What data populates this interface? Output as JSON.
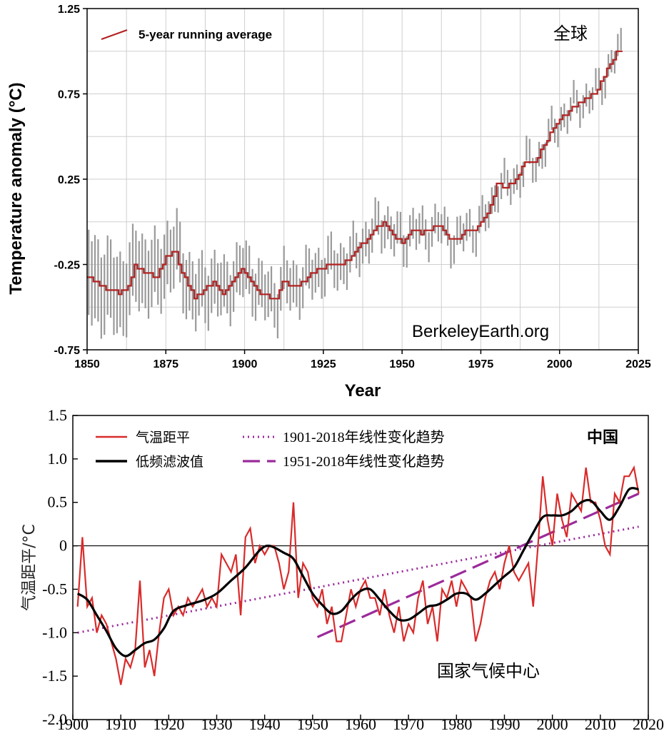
{
  "chart_data": [
    {
      "type": "line",
      "title": "全球",
      "xlabel": "Year",
      "ylabel": "Temperature anomaly (°C)",
      "xlim": [
        1850,
        2025
      ],
      "ylim": [
        -0.75,
        1.25
      ],
      "x_ticks": [
        "1850",
        "1875",
        "1900",
        "1925",
        "1950",
        "1975",
        "2000",
        "2025"
      ],
      "y_ticks": [
        "1.25",
        "0.75",
        "0.25",
        "-0.25",
        "-0.75"
      ],
      "legend": "5-year running average",
      "watermark": "BerkeleyEarth.org",
      "series_color": "#b22222",
      "uncertainty_color": "#9a9a9a",
      "series": [
        {
          "name": "5-year running average",
          "x": [
            1850,
            1855,
            1860,
            1863,
            1865,
            1868,
            1872,
            1875,
            1878,
            1880,
            1884,
            1887,
            1890,
            1893,
            1896,
            1899,
            1902,
            1905,
            1908,
            1910,
            1912,
            1915,
            1918,
            1921,
            1924,
            1927,
            1930,
            1933,
            1936,
            1939,
            1942,
            1944,
            1947,
            1950,
            1953,
            1956,
            1959,
            1962,
            1965,
            1967,
            1970,
            1973,
            1975,
            1978,
            1980,
            1983,
            1986,
            1989,
            1992,
            1995,
            1998,
            2000,
            2003,
            2006,
            2009,
            2012,
            2014,
            2016,
            2018,
            2020
          ],
          "values": [
            -0.32,
            -0.38,
            -0.42,
            -0.38,
            -0.25,
            -0.3,
            -0.32,
            -0.2,
            -0.18,
            -0.3,
            -0.44,
            -0.4,
            -0.36,
            -0.42,
            -0.34,
            -0.28,
            -0.34,
            -0.42,
            -0.44,
            -0.46,
            -0.35,
            -0.38,
            -0.36,
            -0.3,
            -0.28,
            -0.25,
            -0.25,
            -0.22,
            -0.15,
            -0.1,
            -0.02,
            -0.01,
            -0.08,
            -0.12,
            -0.04,
            -0.07,
            -0.04,
            -0.03,
            -0.1,
            -0.11,
            -0.05,
            -0.04,
            0.0,
            0.09,
            0.22,
            0.2,
            0.25,
            0.35,
            0.34,
            0.45,
            0.55,
            0.6,
            0.65,
            0.7,
            0.72,
            0.78,
            0.86,
            0.92,
            1.0,
            1.0
          ]
        }
      ]
    },
    {
      "type": "line",
      "title": "中国",
      "xlabel": "",
      "ylabel": "气温距平/°C",
      "xlim": [
        1900,
        2020
      ],
      "ylim": [
        -2.0,
        1.5
      ],
      "x_ticks": [
        "1900",
        "1910",
        "1920",
        "1930",
        "1940",
        "1950",
        "1960",
        "1970",
        "1980",
        "1990",
        "2000",
        "2010",
        "2020"
      ],
      "y_ticks": [
        "1.5",
        "1.0",
        "0.5",
        "0",
        "-0.5",
        "-1.0",
        "-1.5",
        "-2.0"
      ],
      "watermark": "国家气候中心",
      "legend_labels": {
        "raw": "气温距平",
        "smooth": "低频滤波值",
        "trend_1901": "1901-2018年线性变化趋势",
        "trend_1951": "1951-2018年线性变化趋势"
      },
      "colors": {
        "raw": "#d92b2b",
        "smooth": "#000000",
        "trend": "#9b2a9b"
      },
      "series": [
        {
          "name": "气温距平",
          "x": [
            1901,
            1902,
            1903,
            1904,
            1905,
            1906,
            1907,
            1908,
            1909,
            1910,
            1911,
            1912,
            1913,
            1914,
            1915,
            1916,
            1917,
            1918,
            1919,
            1920,
            1921,
            1922,
            1923,
            1924,
            1925,
            1926,
            1927,
            1928,
            1929,
            1930,
            1931,
            1932,
            1933,
            1934,
            1935,
            1936,
            1937,
            1938,
            1939,
            1940,
            1941,
            1942,
            1943,
            1944,
            1945,
            1946,
            1947,
            1948,
            1949,
            1950,
            1951,
            1952,
            1953,
            1954,
            1955,
            1956,
            1957,
            1958,
            1959,
            1960,
            1961,
            1962,
            1963,
            1964,
            1965,
            1966,
            1967,
            1968,
            1969,
            1970,
            1971,
            1972,
            1973,
            1974,
            1975,
            1976,
            1977,
            1978,
            1979,
            1980,
            1981,
            1982,
            1983,
            1984,
            1985,
            1986,
            1987,
            1988,
            1989,
            1990,
            1991,
            1992,
            1993,
            1994,
            1995,
            1996,
            1997,
            1998,
            1999,
            2000,
            2001,
            2002,
            2003,
            2004,
            2005,
            2006,
            2007,
            2008,
            2009,
            2010,
            2011,
            2012,
            2013,
            2014,
            2015,
            2016,
            2017,
            2018
          ],
          "values": [
            -0.7,
            0.1,
            -0.7,
            -0.6,
            -1.0,
            -0.8,
            -0.9,
            -1.1,
            -1.3,
            -1.6,
            -1.3,
            -1.4,
            -1.2,
            -0.4,
            -1.4,
            -1.2,
            -1.5,
            -1.0,
            -0.6,
            -0.5,
            -0.8,
            -0.7,
            -0.8,
            -0.6,
            -0.7,
            -0.6,
            -0.5,
            -0.7,
            -0.6,
            -0.7,
            -0.1,
            -0.2,
            -0.3,
            -0.1,
            -0.8,
            0.1,
            0.2,
            -0.2,
            0.0,
            -0.1,
            0.0,
            0.0,
            -0.2,
            -0.5,
            -0.3,
            0.5,
            -0.6,
            -0.2,
            -0.3,
            -0.6,
            -0.7,
            -0.5,
            -0.9,
            -0.7,
            -1.1,
            -1.1,
            -0.8,
            -0.5,
            -0.7,
            -0.5,
            -0.4,
            -0.6,
            -0.6,
            -0.8,
            -0.5,
            -0.8,
            -1.0,
            -0.7,
            -1.1,
            -0.9,
            -1.0,
            -0.6,
            -0.4,
            -0.9,
            -0.7,
            -1.1,
            -0.5,
            -0.6,
            -0.4,
            -0.7,
            -0.4,
            -0.5,
            -0.6,
            -1.1,
            -0.9,
            -0.6,
            -0.4,
            -0.3,
            -0.5,
            -0.2,
            0.0,
            -0.3,
            -0.4,
            -0.3,
            -0.2,
            -0.7,
            0.0,
            0.8,
            0.3,
            0.0,
            0.6,
            0.3,
            0.1,
            0.6,
            0.5,
            0.4,
            0.9,
            0.5,
            0.5,
            0.3,
            0.0,
            -0.1,
            0.6,
            0.5,
            0.8,
            0.8,
            0.9,
            0.6
          ]
        },
        {
          "name": "低频滤波值",
          "x": [
            1901,
            1903,
            1905,
            1907,
            1909,
            1911,
            1913,
            1915,
            1917,
            1919,
            1921,
            1924,
            1927,
            1930,
            1933,
            1936,
            1939,
            1941,
            1944,
            1946,
            1948,
            1950,
            1952,
            1954,
            1956,
            1958,
            1960,
            1962,
            1964,
            1966,
            1968,
            1970,
            1972,
            1974,
            1976,
            1978,
            1980,
            1982,
            1984,
            1986,
            1988,
            1990,
            1992,
            1994,
            1996,
            1998,
            2000,
            2002,
            2004,
            2006,
            2008,
            2010,
            2012,
            2014,
            2016,
            2018
          ],
          "values": [
            -0.55,
            -0.62,
            -0.8,
            -0.98,
            -1.18,
            -1.27,
            -1.2,
            -1.12,
            -1.08,
            -0.95,
            -0.75,
            -0.68,
            -0.63,
            -0.55,
            -0.4,
            -0.25,
            -0.05,
            0.0,
            -0.08,
            -0.15,
            -0.35,
            -0.55,
            -0.68,
            -0.78,
            -0.75,
            -0.62,
            -0.52,
            -0.5,
            -0.62,
            -0.75,
            -0.85,
            -0.85,
            -0.78,
            -0.7,
            -0.68,
            -0.62,
            -0.55,
            -0.55,
            -0.62,
            -0.55,
            -0.45,
            -0.35,
            -0.25,
            -0.05,
            0.15,
            0.33,
            0.35,
            0.35,
            0.4,
            0.5,
            0.52,
            0.4,
            0.3,
            0.45,
            0.65,
            0.65
          ]
        },
        {
          "name": "1901-2018年线性变化趋势",
          "x": [
            1901,
            2018
          ],
          "values": [
            -1.0,
            0.22
          ]
        },
        {
          "name": "1951-2018年线性变化趋势",
          "x": [
            1951,
            2018
          ],
          "values": [
            -1.05,
            0.6
          ]
        }
      ]
    }
  ]
}
